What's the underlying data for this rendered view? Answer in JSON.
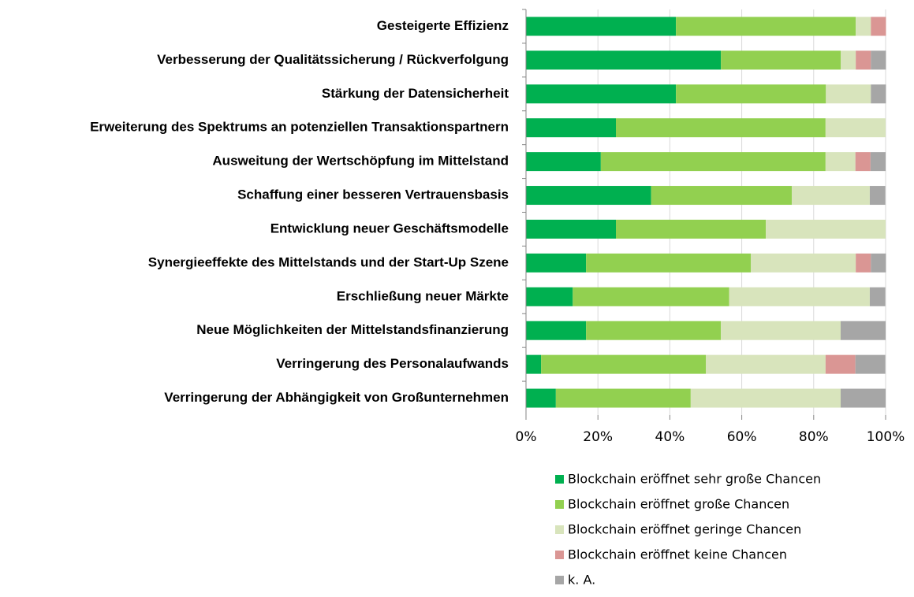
{
  "chart_data": {
    "type": "stacked_barh",
    "categories": [
      "Gesteigerte Effizienz",
      "Verbesserung der Qualitätssicherung / Rückverfolgung",
      "Stärkung der Datensicherheit",
      "Erweiterung des Spektrums an potenziellen Transaktionspartnern",
      "Ausweitung der Wertschöpfung im Mittelstand",
      "Schaffung einer besseren Vertrauensbasis",
      "Entwicklung neuer Geschäftsmodelle",
      "Synergieeffekte des Mittelstands und der Start-Up Szene",
      "Erschließung neuer Märkte",
      "Neue Möglichkeiten der Mittelstandsfinanzierung",
      "Verringerung des Personalaufwands",
      "Verringerung der Abhängigkeit von Großunternehmen"
    ],
    "series": [
      {
        "name": "Blockchain eröffnet sehr große Chancen",
        "color": "#00b050",
        "values": [
          41.7,
          54.2,
          41.7,
          25,
          20.8,
          34.8,
          25,
          16.7,
          13,
          16.7,
          4.2,
          8.3
        ]
      },
      {
        "name": "Blockchain eröffnet große Chancen",
        "color": "#92d050",
        "values": [
          50,
          33.3,
          41.7,
          58.3,
          62.5,
          39.1,
          41.7,
          45.8,
          43.5,
          37.5,
          45.8,
          37.5
        ]
      },
      {
        "name": "Blockchain eröffnet geringe Chancen",
        "color": "#d8e4bc",
        "values": [
          4.2,
          4.2,
          12.5,
          16.7,
          8.3,
          21.7,
          33.3,
          29.2,
          39.1,
          33.3,
          33.3,
          41.7
        ]
      },
      {
        "name": "Blockchain eröffnet keine Chancen",
        "color": "#da9694",
        "values": [
          4.2,
          4.2,
          0,
          0,
          4.2,
          0,
          0,
          4.2,
          0,
          0,
          8.3,
          0
        ]
      },
      {
        "name": "k. A.",
        "color": "#a6a6a6",
        "values": [
          0,
          4.2,
          4.2,
          0,
          4.2,
          4.3,
          0,
          4.2,
          4.3,
          12.5,
          8.3,
          12.5
        ]
      }
    ],
    "xlim": [
      0,
      100
    ],
    "xticks": [
      {
        "value": 0,
        "label": "0%"
      },
      {
        "value": 20,
        "label": "20%"
      },
      {
        "value": 40,
        "label": "40%"
      },
      {
        "value": 60,
        "label": "60%"
      },
      {
        "value": 80,
        "label": "80%"
      },
      {
        "value": 100,
        "label": "100%"
      }
    ],
    "grid": true,
    "legend": "bottom"
  }
}
